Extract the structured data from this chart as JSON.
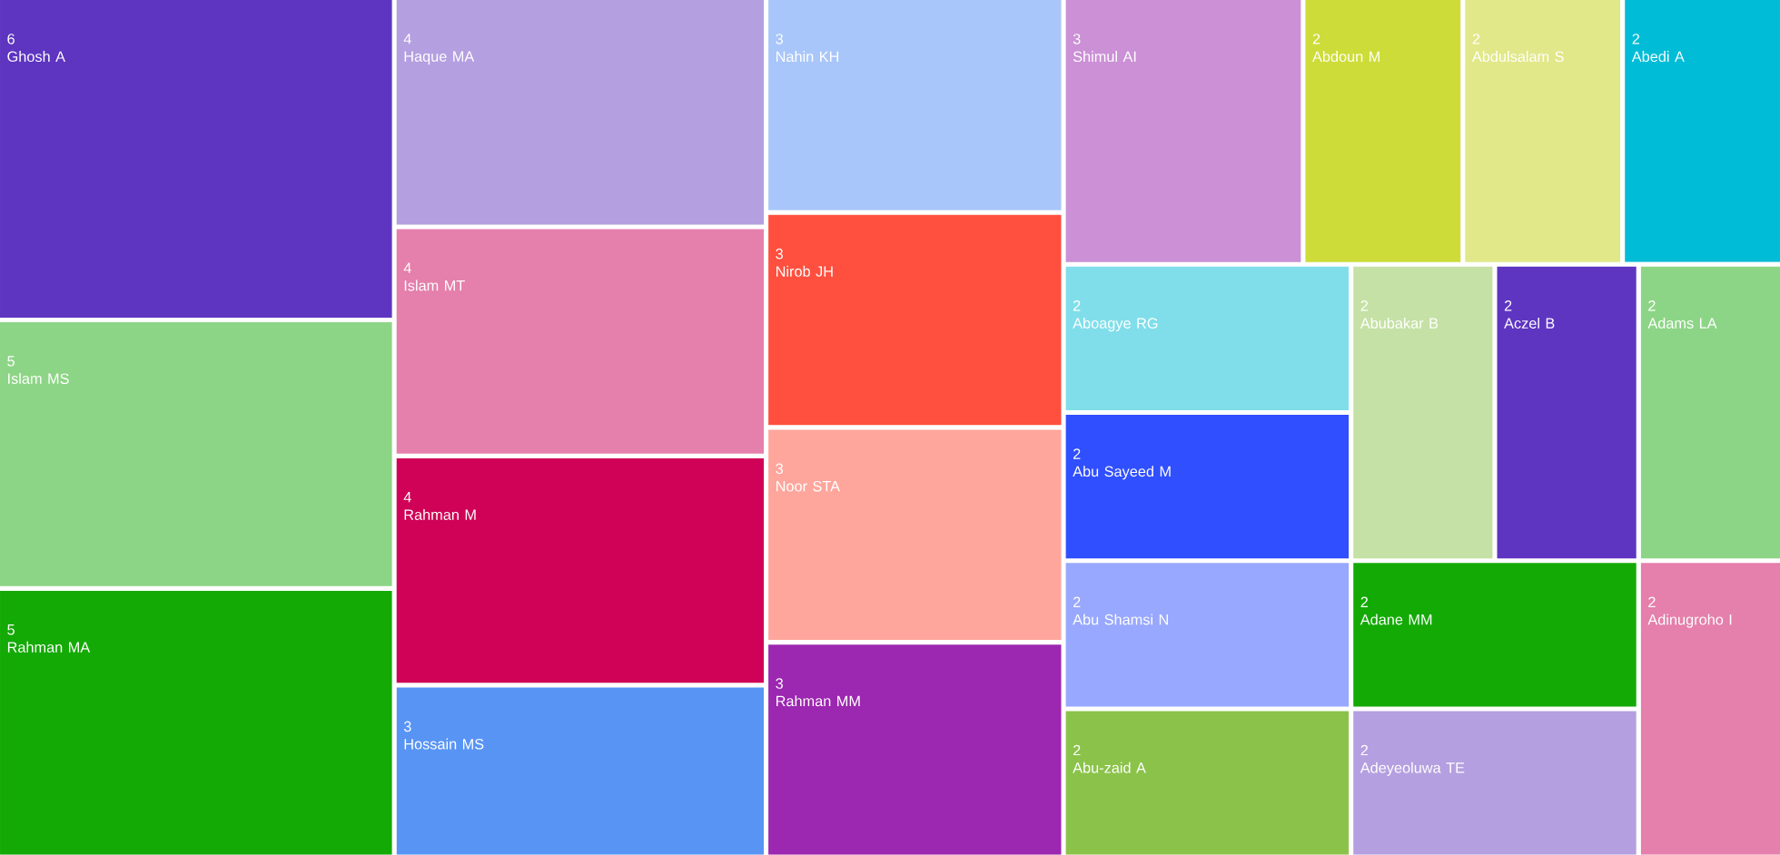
{
  "chart_data": {
    "type": "other",
    "data_labels": true,
    "categories": [
      "Ghosh A",
      "Islam MS",
      "Rahman MA",
      "Haque MA",
      "Islam MT",
      "Rahman M",
      "Hossain MS",
      "Nahin KH",
      "Nirob JH",
      "Noor STA",
      "Rahman MM",
      "Shimul AI",
      "Abdoun M",
      "Abdulsalam S",
      "Abedi A",
      "Aboagye RG",
      "Abu Sayeed M",
      "Abu Shamsi N",
      "Abu-zaid A",
      "Abubakar B",
      "Aczel B",
      "Adams LA",
      "Adane MM",
      "Adeyeoluwa TE",
      "Adinugroho I"
    ],
    "values": [
      6,
      5,
      5,
      4,
      4,
      4,
      3,
      3,
      3,
      3,
      3,
      3,
      2,
      2,
      2,
      2,
      2,
      2,
      2,
      2,
      2,
      2,
      2,
      2,
      2
    ],
    "colors": [
      "#5e35c1",
      "#8dd586",
      "#14aa06",
      "#b49fe0",
      "#e57fab",
      "#cf0257",
      "#5894f4",
      "#a8c6fa",
      "#ff4f3e",
      "#ffa69c",
      "#9c27b0",
      "#cb90d6",
      "#cddc39",
      "#e1e88a",
      "#00bcd6",
      "#80deea",
      "#304ffe",
      "#98a8fe",
      "#8bc34a",
      "#c5e1a5",
      "#5e35c1",
      "#8dd586",
      "#14aa06",
      "#b49fe0",
      "#e57fab"
    ]
  }
}
